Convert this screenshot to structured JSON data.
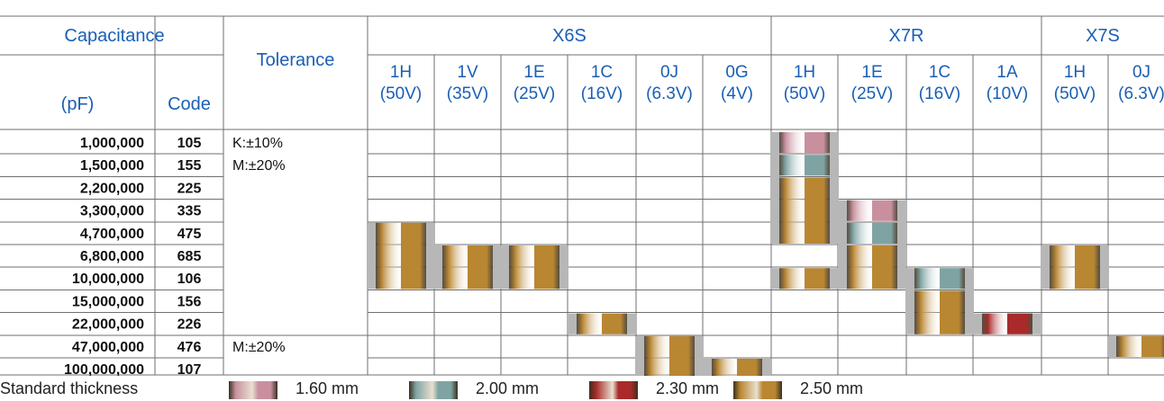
{
  "colors": {
    "header_text": "#1a5fb4",
    "grid": "#6f6f6f",
    "shadow": "#b7b7b7",
    "thickness_1_60": "#c8909f",
    "thickness_2_00": "#7fa3a2",
    "thickness_2_30": "#a82a2a",
    "thickness_2_50": "#b98632"
  },
  "header": {
    "capacitance": "Capacitance",
    "pf": "(pF)",
    "code": "Code",
    "tolerance": "Tolerance",
    "groups": [
      {
        "name": "X6S",
        "columns": [
          {
            "code": "1H",
            "voltage": "(50V)"
          },
          {
            "code": "1V",
            "voltage": "(35V)"
          },
          {
            "code": "1E",
            "voltage": "(25V)"
          },
          {
            "code": "1C",
            "voltage": "(16V)"
          },
          {
            "code": "0J",
            "voltage": "(6.3V)"
          },
          {
            "code": "0G",
            "voltage": "(4V)"
          }
        ]
      },
      {
        "name": "X7R",
        "columns": [
          {
            "code": "1H",
            "voltage": "(50V)"
          },
          {
            "code": "1E",
            "voltage": "(25V)"
          },
          {
            "code": "1C",
            "voltage": "(16V)"
          },
          {
            "code": "1A",
            "voltage": "(10V)"
          }
        ]
      },
      {
        "name": "X7S",
        "columns": [
          {
            "code": "1H",
            "voltage": "(50V)"
          },
          {
            "code": "0J",
            "voltage": "(6.3V)"
          }
        ]
      }
    ]
  },
  "rows": [
    {
      "capacitance": "1,000,000",
      "code": "105"
    },
    {
      "capacitance": "1,500,000",
      "code": "155"
    },
    {
      "capacitance": "2,200,000",
      "code": "225"
    },
    {
      "capacitance": "3,300,000",
      "code": "335"
    },
    {
      "capacitance": "4,700,000",
      "code": "475"
    },
    {
      "capacitance": "6,800,000",
      "code": "685"
    },
    {
      "capacitance": "10,000,000",
      "code": "106"
    },
    {
      "capacitance": "15,000,000",
      "code": "156"
    },
    {
      "capacitance": "22,000,000",
      "code": "226"
    },
    {
      "capacitance": "47,000,000",
      "code": "476"
    },
    {
      "capacitance": "100,000,000",
      "code": "107"
    }
  ],
  "tolerance_notes": [
    {
      "row": 0,
      "text": "K:±10%"
    },
    {
      "row": 1,
      "text": "M:±20%"
    },
    {
      "row": 9,
      "text": "M:±20%"
    }
  ],
  "availability": [
    {
      "column": 0,
      "segments": [
        {
          "row": 4,
          "span": 3,
          "thickness": "2.50"
        }
      ]
    },
    {
      "column": 1,
      "segments": [
        {
          "row": 5,
          "span": 2,
          "thickness": "2.50"
        }
      ]
    },
    {
      "column": 2,
      "segments": [
        {
          "row": 5,
          "span": 2,
          "thickness": "2.50"
        }
      ]
    },
    {
      "column": 3,
      "segments": [
        {
          "row": 8,
          "span": 1,
          "thickness": "2.50"
        }
      ]
    },
    {
      "column": 4,
      "segments": [
        {
          "row": 9,
          "span": 2,
          "thickness": "2.50"
        }
      ]
    },
    {
      "column": 5,
      "segments": [
        {
          "row": 10,
          "span": 1,
          "thickness": "2.50"
        }
      ]
    },
    {
      "column": 6,
      "segments": [
        {
          "row": 0,
          "span": 1,
          "thickness": "1.60"
        },
        {
          "row": 1,
          "span": 1,
          "thickness": "2.00"
        },
        {
          "row": 2,
          "span": 3,
          "thickness": "2.50"
        },
        {
          "row": 6,
          "span": 1,
          "thickness": "2.50"
        }
      ]
    },
    {
      "column": 7,
      "segments": [
        {
          "row": 3,
          "span": 1,
          "thickness": "1.60"
        },
        {
          "row": 4,
          "span": 1,
          "thickness": "2.00"
        },
        {
          "row": 5,
          "span": 2,
          "thickness": "2.50"
        }
      ]
    },
    {
      "column": 8,
      "segments": [
        {
          "row": 6,
          "span": 1,
          "thickness": "2.00"
        },
        {
          "row": 7,
          "span": 2,
          "thickness": "2.50"
        }
      ]
    },
    {
      "column": 9,
      "segments": [
        {
          "row": 8,
          "span": 1,
          "thickness": "2.30"
        }
      ]
    },
    {
      "column": 10,
      "segments": [
        {
          "row": 5,
          "span": 2,
          "thickness": "2.50"
        }
      ]
    },
    {
      "column": 11,
      "segments": [
        {
          "row": 9,
          "span": 1,
          "thickness": "2.50"
        }
      ]
    }
  ],
  "legend": {
    "title": "Standard thickness",
    "items": [
      {
        "label": "1.60 mm",
        "thickness": "1.60"
      },
      {
        "label": "2.00 mm",
        "thickness": "2.00"
      },
      {
        "label": "2.30 mm",
        "thickness": "2.30"
      },
      {
        "label": "2.50 mm",
        "thickness": "2.50"
      }
    ]
  }
}
